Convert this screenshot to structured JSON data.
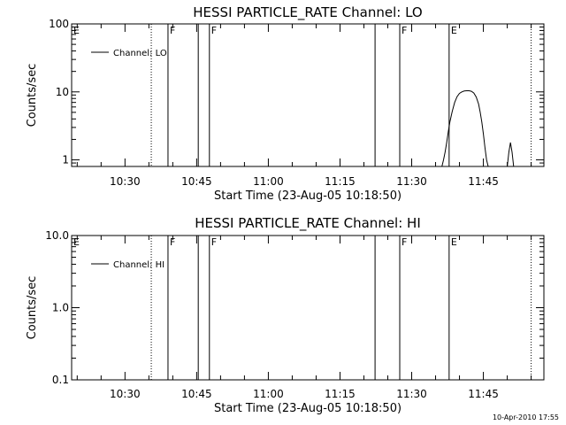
{
  "stamp": "10-Apr-2010 17:55",
  "chart_data": [
    {
      "type": "line",
      "title": "HESSI PARTICLE_RATE Channel: LO",
      "xlabel": "Start Time (23-Aug-05 10:18:50)",
      "ylabel": "Counts/sec",
      "y_scale": "log",
      "ylim": [
        0.8,
        100
      ],
      "xlim": [
        "10:18:50",
        "11:57:40"
      ],
      "y_ticks": [
        {
          "value": 1,
          "label": "1"
        },
        {
          "value": 10,
          "label": "10"
        },
        {
          "value": 100,
          "label": "100"
        }
      ],
      "x_ticks": [
        {
          "value": "10:30",
          "label": "10:30"
        },
        {
          "value": "10:45",
          "label": "10:45"
        },
        {
          "value": "11:00",
          "label": "11:00"
        },
        {
          "value": "11:15",
          "label": "11:15"
        },
        {
          "value": "11:30",
          "label": "11:30"
        },
        {
          "value": "11:45",
          "label": "11:45"
        }
      ],
      "legend": {
        "position": "top-left",
        "entries": [
          "Channel: LO"
        ]
      },
      "markers": [
        {
          "time": "10:18:50",
          "style": "none",
          "label": "E"
        },
        {
          "time": "10:35:30",
          "style": "dotted",
          "label": ""
        },
        {
          "time": "10:39:00",
          "style": "solid",
          "label": "F"
        },
        {
          "time": "10:45:20",
          "style": "solid",
          "label": ""
        },
        {
          "time": "10:47:40",
          "style": "solid",
          "label": "F"
        },
        {
          "time": "11:22:20",
          "style": "solid",
          "label": ""
        },
        {
          "time": "11:27:30",
          "style": "solid",
          "label": "F"
        },
        {
          "time": "11:37:50",
          "style": "solid",
          "label": "E"
        },
        {
          "time": "11:55:00",
          "style": "dotted",
          "label": ""
        }
      ],
      "series": [
        {
          "name": "Channel: LO",
          "segments": [
            {
              "x": [
                "11:36:20",
                "11:36:40",
                "11:37:00",
                "11:37:20",
                "11:37:40",
                "11:38:00",
                "11:38:30",
                "11:39:00",
                "11:39:30",
                "11:40:00",
                "11:40:30",
                "11:41:00",
                "11:41:30",
                "11:42:00",
                "11:42:30",
                "11:43:00",
                "11:43:30",
                "11:44:00",
                "11:44:20",
                "11:44:40",
                "11:45:00",
                "11:45:20",
                "11:45:40",
                "11:46:00"
              ],
              "y": [
                0.8,
                1.0,
                1.3,
                1.8,
                2.6,
                3.6,
                5.2,
                7.0,
                8.5,
                9.5,
                10.0,
                10.3,
                10.4,
                10.4,
                10.2,
                9.6,
                8.4,
                6.6,
                5.0,
                3.6,
                2.4,
                1.5,
                1.0,
                0.8
              ]
            },
            {
              "x": [
                "11:50:00",
                "11:50:20",
                "11:50:40",
                "11:51:00",
                "11:51:20"
              ],
              "y": [
                0.8,
                1.3,
                1.8,
                1.3,
                0.8
              ]
            }
          ]
        }
      ]
    },
    {
      "type": "line",
      "title": "HESSI PARTICLE_RATE Channel: HI",
      "xlabel": "Start Time (23-Aug-05 10:18:50)",
      "ylabel": "Counts/sec",
      "y_scale": "log",
      "ylim": [
        0.1,
        10
      ],
      "xlim": [
        "10:18:50",
        "11:57:40"
      ],
      "y_ticks": [
        {
          "value": 0.1,
          "label": "0.1"
        },
        {
          "value": 1,
          "label": "1.0"
        },
        {
          "value": 10,
          "label": "10.0"
        }
      ],
      "x_ticks": [
        {
          "value": "10:30",
          "label": "10:30"
        },
        {
          "value": "10:45",
          "label": "10:45"
        },
        {
          "value": "11:00",
          "label": "11:00"
        },
        {
          "value": "11:15",
          "label": "11:15"
        },
        {
          "value": "11:30",
          "label": "11:30"
        },
        {
          "value": "11:45",
          "label": "11:45"
        }
      ],
      "legend": {
        "position": "top-left",
        "entries": [
          "Channel: HI"
        ]
      },
      "markers": [
        {
          "time": "10:18:50",
          "style": "none",
          "label": "E"
        },
        {
          "time": "10:35:30",
          "style": "dotted",
          "label": ""
        },
        {
          "time": "10:39:00",
          "style": "solid",
          "label": "F"
        },
        {
          "time": "10:45:20",
          "style": "solid",
          "label": ""
        },
        {
          "time": "10:47:40",
          "style": "solid",
          "label": "F"
        },
        {
          "time": "11:22:20",
          "style": "solid",
          "label": ""
        },
        {
          "time": "11:27:30",
          "style": "solid",
          "label": "F"
        },
        {
          "time": "11:37:50",
          "style": "solid",
          "label": "E"
        },
        {
          "time": "11:55:00",
          "style": "dotted",
          "label": ""
        }
      ],
      "series": [
        {
          "name": "Channel: HI",
          "segments": []
        }
      ]
    }
  ]
}
